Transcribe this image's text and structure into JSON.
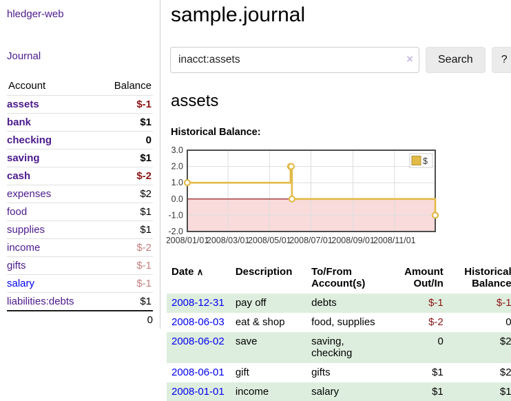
{
  "app": {
    "brand": "hledger-web"
  },
  "colors": {
    "accent_purple": "#4B1A8C",
    "link_blue": "#0000EE",
    "negative_red": "#8B1414",
    "negative_rose": "#C47E7E",
    "row_green": "#DEEEDE",
    "chart_line_gold": "#E2BA47",
    "chart_negative_pink": "#F9DBDB",
    "chart_zero_line": "#8B0000"
  },
  "sidebar": {
    "journal_label": "Journal",
    "headers": {
      "account": "Account",
      "balance": "Balance"
    },
    "accounts": [
      {
        "name": "assets",
        "balance": "$-1"
      },
      {
        "name": "bank",
        "balance": "$1"
      },
      {
        "name": "checking",
        "balance": "0"
      },
      {
        "name": "saving",
        "balance": "$1"
      },
      {
        "name": "cash",
        "balance": "$-2"
      },
      {
        "name": "expenses",
        "balance": "$2"
      },
      {
        "name": "food",
        "balance": "$1"
      },
      {
        "name": "supplies",
        "balance": "$1"
      },
      {
        "name": "income",
        "balance": "$-2"
      },
      {
        "name": "gifts",
        "balance": "$-1"
      },
      {
        "name": "salary",
        "balance": "$-1"
      },
      {
        "name": "liabilities:debts",
        "balance": "$1"
      }
    ],
    "total": "0"
  },
  "main": {
    "title": "sample.journal",
    "search": {
      "value": "inacct:assets",
      "clear_icon": "×",
      "button_label": "Search",
      "help_label": "?"
    },
    "account_heading": "assets",
    "chart_label": "Historical Balance:",
    "register": {
      "headers": {
        "date": "Date",
        "sort_icon": "∧",
        "description": "Description",
        "accounts": "To/From\nAccount(s)",
        "amount": "Amount\nOut/In",
        "balance": "Historical\nBalance"
      },
      "rows": [
        {
          "date": "2008-12-31",
          "description": "pay off",
          "accounts": "debts",
          "amount": "$-1",
          "balance": "$-1"
        },
        {
          "date": "2008-06-03",
          "description": "eat & shop",
          "accounts": "food, supplies",
          "amount": "$-2",
          "balance": "0"
        },
        {
          "date": "2008-06-02",
          "description": "save",
          "accounts": "saving, checking",
          "amount": "0",
          "balance": "$2"
        },
        {
          "date": "2008-06-01",
          "description": "gift",
          "accounts": "gifts",
          "amount": "$1",
          "balance": "$2"
        },
        {
          "date": "2008-01-01",
          "description": "income",
          "accounts": "salary",
          "amount": "$1",
          "balance": "$1"
        }
      ]
    }
  },
  "chart_data": {
    "type": "line",
    "style": "step-after",
    "title": "Historical Balance:",
    "xlabel": "",
    "ylabel": "",
    "xlim": [
      "2008-01-01",
      "2008-12-31"
    ],
    "ylim": [
      -2.0,
      3.0
    ],
    "yticks": [
      3.0,
      2.0,
      1.0,
      0.0,
      -1.0,
      -2.0
    ],
    "xticks": [
      {
        "date": "2008-01-01",
        "label": "2008/01/01"
      },
      {
        "date": "2008-03-01",
        "label": "2008/03/01"
      },
      {
        "date": "2008-05-01",
        "label": "2008/05/01"
      },
      {
        "date": "2008-07-01",
        "label": "2008/07/01"
      },
      {
        "date": "2008-09-01",
        "label": "2008/09/01"
      },
      {
        "date": "2008-11-01",
        "label": "2008/11/01"
      }
    ],
    "series": [
      {
        "name": "$",
        "points": [
          [
            "2008-01-01",
            1
          ],
          [
            "2008-06-01",
            2
          ],
          [
            "2008-06-02",
            2
          ],
          [
            "2008-06-03",
            0
          ],
          [
            "2008-12-31",
            -1
          ]
        ]
      }
    ],
    "legend_position": "top-right",
    "grid": true,
    "negative_region_shaded": true
  }
}
